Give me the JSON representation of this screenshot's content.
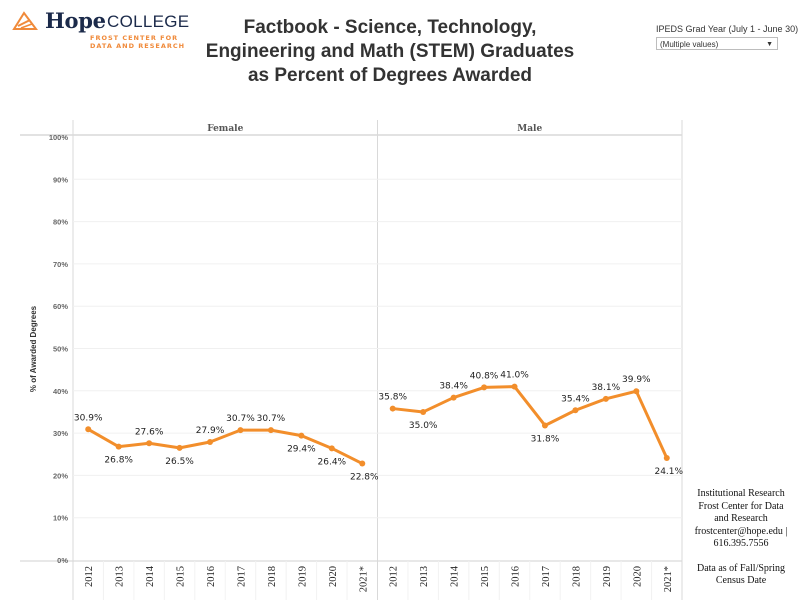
{
  "header": {
    "logo": {
      "name": "Hope",
      "college": "COLLEGE",
      "subtitle_line1": "FROST CENTER FOR",
      "subtitle_line2": "DATA AND RESEARCH",
      "brand_color": "#1b2a4a",
      "accent_color": "#f08a3a"
    },
    "title_line1": "Factbook - Science, Technology,",
    "title_line2": "Engineering and Math (STEM) Graduates",
    "title_line3": "as Percent of Degrees Awarded"
  },
  "filter": {
    "label": "IPEDS Grad Year (July 1 - June 30)",
    "value": "(Multiple values)"
  },
  "footer": {
    "line1": "Institutional Research",
    "line2": "Frost Center for Data",
    "line3": "and Research",
    "line4": "frostcenter@hope.edu |",
    "line5": "616.395.7556",
    "line6": "Data as of Fall/Spring",
    "line7": "Census Date"
  },
  "chart_data": {
    "type": "line",
    "title": "Factbook - Science, Technology, Engineering and Math (STEM) Graduates as Percent of Degrees Awarded",
    "ylabel": "% of Awarded Degrees",
    "xlabel": "",
    "ylim": [
      0,
      100
    ],
    "yticks": [
      "0%",
      "10%",
      "20%",
      "30%",
      "40%",
      "50%",
      "60%",
      "70%",
      "80%",
      "90%",
      "100%"
    ],
    "categories": [
      "2012",
      "2013",
      "2014",
      "2015",
      "2016",
      "2017",
      "2018",
      "2019",
      "2020",
      "2021*"
    ],
    "grid": true,
    "line_color": "#f28e2b",
    "panels": [
      {
        "name": "Female",
        "values": [
          30.9,
          26.8,
          27.6,
          26.5,
          27.9,
          30.7,
          30.7,
          29.4,
          26.4,
          22.8
        ],
        "labels": [
          "30.9%",
          "26.8%",
          "27.6%",
          "26.5%",
          "27.9%",
          "30.7%",
          "30.7%",
          "29.4%",
          "26.4%",
          "22.8%"
        ]
      },
      {
        "name": "Male",
        "values": [
          35.8,
          35.0,
          38.4,
          40.8,
          41.0,
          31.8,
          35.4,
          38.1,
          39.9,
          24.1
        ],
        "labels": [
          "35.8%",
          "35.0%",
          "38.4%",
          "40.8%",
          "41.0%",
          "31.8%",
          "35.4%",
          "38.1%",
          "39.9%",
          "24.1%"
        ]
      }
    ]
  }
}
